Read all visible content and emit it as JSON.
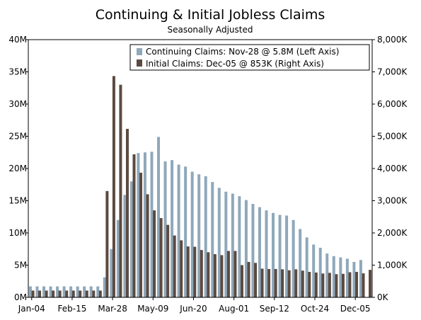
{
  "chart_data": {
    "type": "bar",
    "title": "Continuing & Initial Jobless Claims",
    "subtitle": "Seasonally Adjusted",
    "y_left": {
      "lim": [
        0,
        40
      ],
      "ticks": [
        0,
        5,
        10,
        15,
        20,
        25,
        30,
        35,
        40
      ],
      "tick_labels": [
        "0M",
        "5M",
        "10M",
        "15M",
        "20M",
        "25M",
        "30M",
        "35M",
        "40M"
      ]
    },
    "y_right": {
      "lim": [
        0,
        8000
      ],
      "ticks": [
        0,
        1000,
        2000,
        3000,
        4000,
        5000,
        6000,
        7000,
        8000
      ],
      "tick_labels": [
        "0K",
        "1,000K",
        "2,000K",
        "3,000K",
        "4,000K",
        "5,000K",
        "6,000K",
        "7,000K",
        "8,000K"
      ]
    },
    "x_tick_labels": [
      {
        "index": 0,
        "label": "Jan-04"
      },
      {
        "index": 6,
        "label": "Feb-15"
      },
      {
        "index": 12,
        "label": "Mar-28"
      },
      {
        "index": 18,
        "label": "May-09"
      },
      {
        "index": 24,
        "label": "Jun-20"
      },
      {
        "index": 30,
        "label": "Aug-01"
      },
      {
        "index": 36,
        "label": "Sep-12"
      },
      {
        "index": 42,
        "label": "Oct-24"
      },
      {
        "index": 48,
        "label": "Dec-05"
      }
    ],
    "legend_position": "top-right",
    "series": [
      {
        "name": "Continuing Claims: Nov-28 @ 5.8M (Left Axis)",
        "axis": "left",
        "color": "#8fa8ba",
        "values": [
          1.7,
          1.7,
          1.7,
          1.7,
          1.7,
          1.7,
          1.7,
          1.7,
          1.7,
          1.7,
          1.7,
          3.1,
          7.5,
          12.0,
          15.9,
          18.0,
          22.4,
          22.5,
          22.6,
          24.9,
          21.1,
          21.3,
          20.6,
          20.3,
          19.5,
          19.1,
          18.8,
          17.9,
          17.0,
          16.4,
          16.1,
          15.7,
          15.1,
          14.5,
          14.0,
          13.5,
          13.1,
          12.8,
          12.7,
          12.0,
          10.6,
          9.3,
          8.2,
          7.7,
          6.8,
          6.4,
          6.2,
          6.0,
          5.5,
          5.8,
          null
        ],
        "labeled_value": "5.8M"
      },
      {
        "name": "Initial Claims: Dec-05 @ 853K (Right Axis)",
        "axis": "right",
        "color": "#5c4a40",
        "values": [
          210,
          210,
          210,
          210,
          210,
          210,
          210,
          210,
          210,
          210,
          210,
          3300,
          6870,
          6600,
          5230,
          4440,
          3870,
          3200,
          2700,
          2460,
          2250,
          1920,
          1770,
          1580,
          1570,
          1470,
          1400,
          1340,
          1310,
          1440,
          1440,
          1000,
          1100,
          1070,
          890,
          880,
          880,
          870,
          840,
          870,
          830,
          790,
          770,
          740,
          760,
          720,
          730,
          780,
          790,
          745,
          853
        ],
        "labeled_value": "853K"
      }
    ]
  }
}
